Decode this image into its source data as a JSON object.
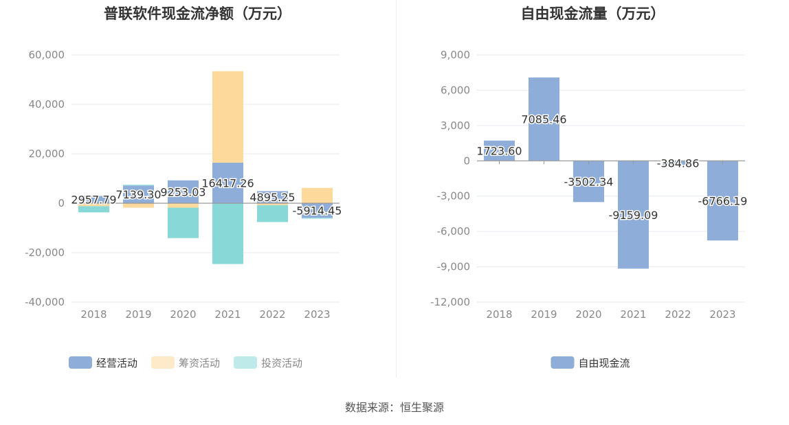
{
  "chart_data": [
    {
      "type": "bar",
      "stacked": true,
      "title": "普联软件现金流净额（万元）",
      "categories": [
        "2018",
        "2019",
        "2020",
        "2021",
        "2022",
        "2023"
      ],
      "ylim": [
        -40000,
        60000
      ],
      "yticks": [
        "60,000",
        "40,000",
        "20,000",
        "0",
        "-20,000",
        "-40,000"
      ],
      "ytick_values": [
        60000,
        40000,
        20000,
        0,
        -20000,
        -40000
      ],
      "grid": true,
      "legend_position": "bottom",
      "series": [
        {
          "name": "经营活动",
          "color": "#8fadd9",
          "values": [
            2957.79,
            7139.3,
            9253.03,
            16417.26,
            4895.25,
            -5914.45
          ]
        },
        {
          "name": "筹资活动",
          "color": "#fdd99b",
          "values": [
            -1200,
            -1800,
            -1800,
            37000,
            -800,
            6200
          ]
        },
        {
          "name": "投资活动",
          "color": "#88d8d8",
          "values": [
            -2500,
            300,
            -12300,
            -24600,
            -6800,
            -300
          ]
        }
      ],
      "data_labels": [
        "2957.79",
        "7139.30",
        "9253.03",
        "16417.26",
        "4895.25",
        "-5914.45"
      ]
    },
    {
      "type": "bar",
      "title": "自由现金流量（万元）",
      "categories": [
        "2018",
        "2019",
        "2020",
        "2021",
        "2022",
        "2023"
      ],
      "ylim": [
        -12000,
        9000
      ],
      "yticks": [
        "9,000",
        "6,000",
        "3,000",
        "0",
        "-3,000",
        "-6,000",
        "-9,000",
        "-12,000"
      ],
      "ytick_values": [
        9000,
        6000,
        3000,
        0,
        -3000,
        -6000,
        -9000,
        -12000
      ],
      "grid": true,
      "legend_position": "bottom",
      "series": [
        {
          "name": "自由现金流",
          "color": "#8fadd9",
          "values": [
            1723.6,
            7085.46,
            -3502.34,
            -9159.09,
            -384.86,
            -6766.19
          ]
        }
      ],
      "data_labels": [
        "1723.60",
        "7085.46",
        "-3502.34",
        "-9159.09",
        "-384.86",
        "-6766.19"
      ]
    }
  ],
  "source": "数据来源：恒生聚源"
}
